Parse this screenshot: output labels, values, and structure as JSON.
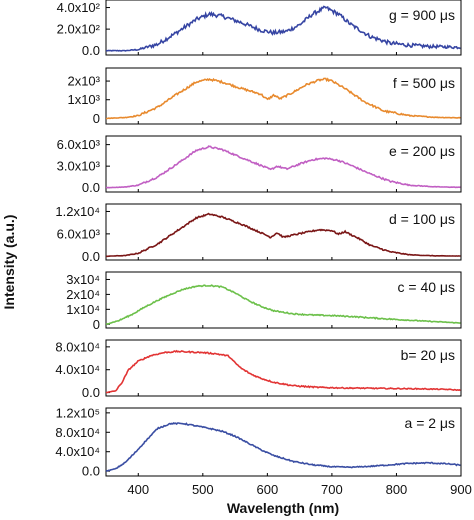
{
  "chart_data": {
    "type": "line",
    "ylabel": "Intensity (a.u.)",
    "xlabel": "Wavelength (nm)",
    "xlim": [
      350,
      900
    ],
    "x_ticks": [
      "400",
      "500",
      "600",
      "700",
      "800",
      "900"
    ],
    "panels": [
      {
        "label": "g = 900 μs",
        "color": "#3645a3",
        "ylim": [
          -40,
          470
        ],
        "y_ticks": [
          {
            "value": 400,
            "label": "4.0x10²"
          },
          {
            "value": 200,
            "label": "2.0x10²"
          },
          {
            "value": 0,
            "label": "0.0"
          }
        ],
        "noise": 0.09,
        "x": [
          350,
          380,
          400,
          430,
          460,
          490,
          510,
          530,
          560,
          590,
          610,
          630,
          650,
          670,
          690,
          710,
          730,
          760,
          790,
          820,
          850,
          880,
          900
        ],
        "y": [
          0,
          0,
          10,
          60,
          170,
          290,
          340,
          320,
          260,
          190,
          165,
          180,
          240,
          340,
          400,
          340,
          240,
          130,
          70,
          50,
          40,
          35,
          30
        ]
      },
      {
        "label": "f = 500 μs",
        "color": "#e88a2e",
        "ylim": [
          -300,
          2700
        ],
        "y_ticks": [
          {
            "value": 2000,
            "label": "2x10³"
          },
          {
            "value": 1000,
            "label": "1x10³"
          },
          {
            "value": 0,
            "label": "0"
          }
        ],
        "noise": 0.05,
        "x": [
          350,
          380,
          400,
          430,
          460,
          490,
          510,
          530,
          560,
          590,
          600,
          610,
          620,
          640,
          660,
          680,
          690,
          700,
          720,
          750,
          780,
          820,
          860,
          900
        ],
        "y": [
          0,
          50,
          150,
          600,
          1300,
          1950,
          2100,
          1950,
          1600,
          1300,
          1000,
          1250,
          1050,
          1400,
          1800,
          2050,
          2100,
          2000,
          1600,
          900,
          400,
          150,
          60,
          30
        ]
      },
      {
        "label": "e = 200 μs",
        "color": "#c15fc3",
        "ylim": [
          -600,
          7200
        ],
        "y_ticks": [
          {
            "value": 6000,
            "label": "6.0x10³"
          },
          {
            "value": 3000,
            "label": "3.0x10³"
          },
          {
            "value": 0,
            "label": "0.0"
          }
        ],
        "noise": 0.04,
        "x": [
          350,
          380,
          400,
          430,
          460,
          490,
          510,
          530,
          560,
          590,
          605,
          615,
          630,
          650,
          670,
          690,
          710,
          730,
          760,
          790,
          820,
          860,
          900
        ],
        "y": [
          0,
          100,
          350,
          1500,
          3300,
          5200,
          5700,
          5300,
          4200,
          3100,
          2500,
          3000,
          2600,
          3300,
          3900,
          4100,
          3800,
          3100,
          1900,
          900,
          350,
          120,
          50
        ]
      },
      {
        "label": "d = 100 μs",
        "color": "#7a1616",
        "ylim": [
          -1000,
          14000
        ],
        "y_ticks": [
          {
            "value": 12000,
            "label": "1.2x10⁴"
          },
          {
            "value": 6000,
            "label": "6.0x10³"
          },
          {
            "value": 0,
            "label": "0.0"
          }
        ],
        "noise": 0.035,
        "x": [
          350,
          380,
          400,
          430,
          460,
          490,
          510,
          530,
          560,
          590,
          605,
          615,
          625,
          640,
          660,
          680,
          700,
          710,
          720,
          740,
          760,
          790,
          820,
          860,
          900
        ],
        "y": [
          0,
          200,
          800,
          3300,
          6800,
          10300,
          11300,
          10500,
          8600,
          6300,
          5100,
          6300,
          5100,
          5700,
          6400,
          7100,
          6900,
          5900,
          6600,
          4900,
          2900,
          1200,
          400,
          120,
          50
        ]
      },
      {
        "label": "c = 40 μs",
        "color": "#6cc04a",
        "ylim": [
          -2500,
          35000
        ],
        "y_ticks": [
          {
            "value": 30000,
            "label": "3x10⁴"
          },
          {
            "value": 20000,
            "label": "2x10⁴"
          },
          {
            "value": 10000,
            "label": "1x10⁴"
          },
          {
            "value": 0,
            "label": "0"
          }
        ],
        "noise": 0.03,
        "x": [
          350,
          370,
          390,
          410,
          430,
          450,
          470,
          490,
          510,
          530,
          550,
          570,
          590,
          610,
          640,
          670,
          700,
          730,
          760,
          800,
          840,
          880,
          900
        ],
        "y": [
          0,
          2500,
          6500,
          11500,
          16000,
          20000,
          23500,
          25500,
          26000,
          25000,
          21000,
          16000,
          12000,
          9000,
          7000,
          6200,
          5800,
          5200,
          4300,
          3200,
          2200,
          1300,
          800
        ]
      },
      {
        "label": "b= 20 μs",
        "color": "#e23434",
        "ylim": [
          -6000,
          92000
        ],
        "y_ticks": [
          {
            "value": 80000,
            "label": "8.0x10⁴"
          },
          {
            "value": 40000,
            "label": "4.0x10⁴"
          },
          {
            "value": 0,
            "label": "0.0"
          }
        ],
        "noise": 0.03,
        "x": [
          350,
          365,
          375,
          385,
          400,
          420,
          440,
          460,
          480,
          500,
          520,
          540,
          550,
          560,
          575,
          590,
          610,
          640,
          680,
          720,
          760,
          800,
          840,
          880,
          900
        ],
        "y": [
          0,
          3000,
          18000,
          40000,
          55000,
          65000,
          70000,
          72000,
          71000,
          70000,
          68000,
          64000,
          52000,
          42000,
          32000,
          25000,
          18000,
          12000,
          9000,
          8000,
          7500,
          7000,
          6500,
          5500,
          4000
        ]
      },
      {
        "label": "a = 2 μs",
        "color": "#3a4ea3",
        "ylim": [
          -10000,
          130000
        ],
        "y_ticks": [
          {
            "value": 120000,
            "label": "1.2x10⁵"
          },
          {
            "value": 80000,
            "label": "8.0x10⁴"
          },
          {
            "value": 40000,
            "label": "4.0x10⁴"
          },
          {
            "value": 0,
            "label": "0.0"
          }
        ],
        "noise": 0.025,
        "x": [
          350,
          365,
          380,
          395,
          410,
          430,
          450,
          470,
          490,
          510,
          530,
          550,
          570,
          590,
          610,
          640,
          670,
          700,
          730,
          760,
          790,
          820,
          850,
          880,
          900
        ],
        "y": [
          0,
          5000,
          18000,
          38000,
          60000,
          88000,
          98000,
          98000,
          93000,
          88000,
          82000,
          72000,
          58000,
          44000,
          32000,
          20000,
          13000,
          9000,
          8000,
          10000,
          13000,
          16000,
          17000,
          15000,
          12000
        ]
      }
    ]
  }
}
